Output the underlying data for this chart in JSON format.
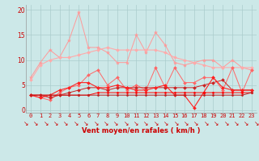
{
  "x": [
    0,
    1,
    2,
    3,
    4,
    5,
    6,
    7,
    8,
    9,
    10,
    11,
    12,
    13,
    14,
    15,
    16,
    17,
    18,
    19,
    20,
    21,
    22,
    23
  ],
  "background_color": "#cce8e8",
  "grid_color": "#aacccc",
  "xlabel": "Vent moyen/en rafales ( km/h )",
  "yticks": [
    0,
    5,
    10,
    15,
    20
  ],
  "series": [
    {
      "color": "#ff9999",
      "linewidth": 0.7,
      "marker": "*",
      "markersize": 3,
      "values": [
        6.5,
        9.5,
        12.0,
        10.5,
        14.0,
        19.5,
        12.5,
        12.5,
        11.5,
        9.5,
        9.5,
        15.0,
        11.5,
        15.5,
        13.0,
        9.5,
        9.0,
        9.5,
        10.0,
        10.0,
        8.5,
        10.0,
        8.5,
        8.0
      ]
    },
    {
      "color": "#ffaaaa",
      "linewidth": 0.8,
      "marker": "D",
      "markersize": 2,
      "values": [
        6.0,
        9.0,
        10.0,
        10.5,
        10.5,
        11.0,
        11.5,
        12.0,
        12.5,
        12.0,
        12.0,
        12.0,
        12.0,
        12.0,
        11.5,
        10.5,
        10.0,
        9.5,
        9.0,
        8.5,
        8.5,
        8.5,
        8.5,
        8.5
      ]
    },
    {
      "color": "#ff6666",
      "linewidth": 0.7,
      "marker": "D",
      "markersize": 2,
      "values": [
        3.0,
        2.5,
        2.0,
        3.5,
        4.5,
        5.0,
        7.0,
        8.0,
        5.0,
        6.5,
        4.0,
        5.0,
        4.0,
        8.5,
        4.5,
        8.5,
        5.5,
        5.5,
        6.5,
        6.5,
        4.0,
        8.5,
        3.5,
        8.0
      ]
    },
    {
      "color": "#cc2222",
      "linewidth": 0.7,
      "marker": "D",
      "markersize": 2,
      "values": [
        3.0,
        3.0,
        2.5,
        3.0,
        3.5,
        4.0,
        4.5,
        4.5,
        4.0,
        4.5,
        4.5,
        4.5,
        4.5,
        4.5,
        4.5,
        4.5,
        4.5,
        4.5,
        5.0,
        5.5,
        6.0,
        4.0,
        4.0,
        4.0
      ]
    },
    {
      "color": "#ff2222",
      "linewidth": 0.8,
      "marker": "D",
      "markersize": 2,
      "values": [
        3.0,
        2.5,
        3.0,
        4.0,
        4.5,
        5.5,
        5.5,
        4.5,
        4.5,
        5.0,
        4.5,
        4.0,
        4.0,
        4.5,
        5.0,
        3.0,
        3.0,
        0.5,
        3.5,
        6.5,
        4.5,
        4.0,
        4.0,
        4.0
      ]
    },
    {
      "color": "#ff0000",
      "linewidth": 0.7,
      "marker": "D",
      "markersize": 1.5,
      "values": [
        3.0,
        3.0,
        3.0,
        3.0,
        3.0,
        3.0,
        3.0,
        3.5,
        3.5,
        3.5,
        3.5,
        3.5,
        3.5,
        3.5,
        3.5,
        3.5,
        3.5,
        3.5,
        3.5,
        3.5,
        3.5,
        3.5,
        3.5,
        3.5
      ]
    },
    {
      "color": "#bb2222",
      "linewidth": 0.7,
      "marker": "D",
      "markersize": 1.5,
      "values": [
        3.0,
        3.0,
        3.0,
        3.0,
        3.0,
        3.0,
        3.0,
        3.0,
        3.0,
        3.0,
        3.0,
        3.0,
        3.0,
        3.0,
        3.0,
        3.0,
        3.0,
        3.0,
        3.0,
        3.0,
        3.0,
        3.0,
        3.0,
        3.5
      ]
    }
  ],
  "arrow_color": "#cc0000",
  "arrow_symbol": "↘",
  "xlabel_color": "#cc0000",
  "xlabel_fontsize": 6.0,
  "tick_fontsize": 5.0,
  "tick_color": "#cc0000"
}
